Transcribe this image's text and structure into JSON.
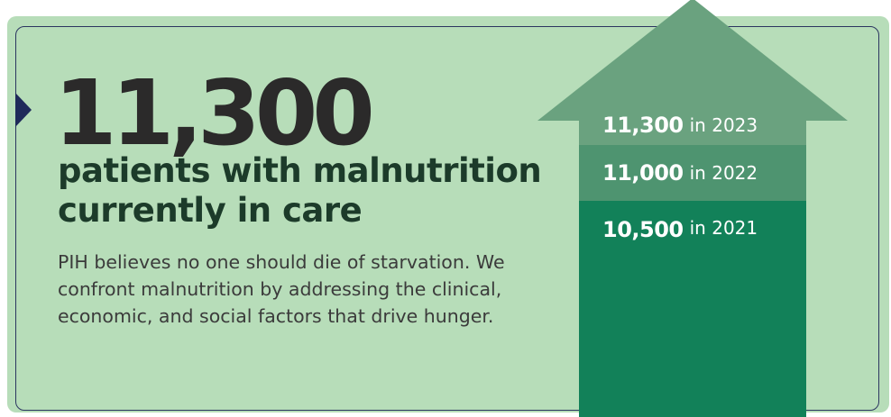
{
  "headline": {
    "number": "11,300",
    "title": "patients with malnutrition currently in care",
    "body": "PIH believes no one should die of starvation. We confront malnutrition by addressing the clinical, economic, and social factors that drive hunger."
  },
  "chart_data": {
    "type": "bar",
    "categories": [
      "2023",
      "2022",
      "2021"
    ],
    "values": [
      11300,
      11000,
      10500
    ],
    "labels": [
      {
        "value": "11,300",
        "suffix": "in 2023"
      },
      {
        "value": "11,000",
        "suffix": "in 2022"
      },
      {
        "value": "10,500",
        "suffix": "in 2021"
      }
    ]
  },
  "colors": {
    "panel": "#b7ddb9",
    "arrow_top": "#6aa27f",
    "arrow_mid": "#4e9470",
    "arrow_base": "#128159",
    "headline": "#1c3b2a"
  }
}
